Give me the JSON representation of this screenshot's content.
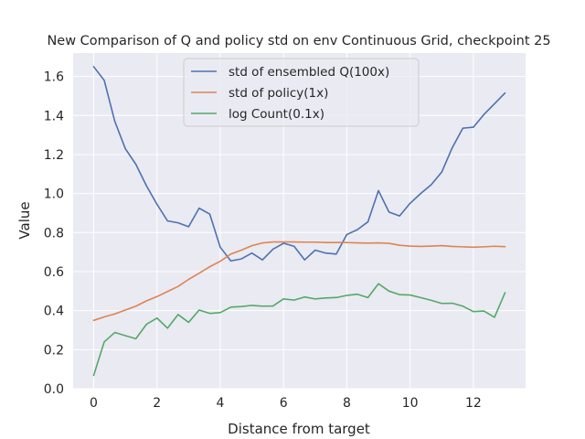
{
  "chart_data": {
    "type": "line",
    "title": "New Comparison of Q and policy std on env Continuous Grid, checkpoint 25",
    "xlabel": "Distance from target",
    "ylabel": "Value",
    "xlim": [
      -0.65,
      13.65
    ],
    "ylim": [
      0.0,
      1.72
    ],
    "xticks": [
      0,
      2,
      4,
      6,
      8,
      10,
      12
    ],
    "yticks": [
      0.0,
      0.2,
      0.4,
      0.6,
      0.8,
      1.0,
      1.2,
      1.4,
      1.6
    ],
    "xtick_labels": [
      "0",
      "2",
      "4",
      "6",
      "8",
      "10",
      "12"
    ],
    "ytick_labels": [
      "0.0",
      "0.2",
      "0.4",
      "0.6",
      "0.8",
      "1.0",
      "1.2",
      "1.4",
      "1.6"
    ],
    "grid": true,
    "legend_position": "top-center",
    "x": [
      0,
      0.333,
      0.667,
      1.0,
      1.333,
      1.667,
      2.0,
      2.333,
      2.667,
      3.0,
      3.333,
      3.667,
      4.0,
      4.333,
      4.667,
      5.0,
      5.333,
      5.667,
      6.0,
      6.333,
      6.667,
      7.0,
      7.333,
      7.667,
      8.0,
      8.333,
      8.667,
      9.0,
      9.333,
      9.667,
      10.0,
      10.333,
      10.667,
      11.0,
      11.333,
      11.667,
      12.0,
      12.333,
      12.667,
      13.0
    ],
    "series": [
      {
        "name": "std of ensembled Q(100x)",
        "color": "#4c72b0",
        "values": [
          1.65,
          1.58,
          1.37,
          1.23,
          1.15,
          1.04,
          0.945,
          0.86,
          0.85,
          0.83,
          0.925,
          0.895,
          0.725,
          0.655,
          0.665,
          0.695,
          0.66,
          0.715,
          0.745,
          0.73,
          0.66,
          0.71,
          0.695,
          0.69,
          0.79,
          0.815,
          0.855,
          1.015,
          0.905,
          0.885,
          0.95,
          1.0,
          1.045,
          1.11,
          1.235,
          1.335,
          1.34,
          1.405,
          1.46,
          1.515
        ]
      },
      {
        "name": "std of policy(1x)",
        "color": "#dd8452",
        "values": [
          0.35,
          0.368,
          0.383,
          0.403,
          0.423,
          0.45,
          0.472,
          0.498,
          0.524,
          0.56,
          0.592,
          0.625,
          0.653,
          0.69,
          0.71,
          0.733,
          0.747,
          0.752,
          0.752,
          0.752,
          0.751,
          0.751,
          0.749,
          0.749,
          0.749,
          0.747,
          0.746,
          0.747,
          0.745,
          0.735,
          0.731,
          0.729,
          0.731,
          0.733,
          0.729,
          0.727,
          0.725,
          0.727,
          0.73,
          0.728
        ]
      },
      {
        "name": "log Count(0.1x)",
        "color": "#55a868",
        "values": [
          0.068,
          0.24,
          0.288,
          0.272,
          0.256,
          0.33,
          0.362,
          0.31,
          0.38,
          0.34,
          0.403,
          0.386,
          0.39,
          0.418,
          0.421,
          0.427,
          0.423,
          0.424,
          0.46,
          0.454,
          0.47,
          0.46,
          0.465,
          0.467,
          0.478,
          0.484,
          0.467,
          0.538,
          0.5,
          0.482,
          0.48,
          0.467,
          0.453,
          0.437,
          0.438,
          0.423,
          0.395,
          0.398,
          0.366,
          0.492
        ]
      }
    ]
  }
}
